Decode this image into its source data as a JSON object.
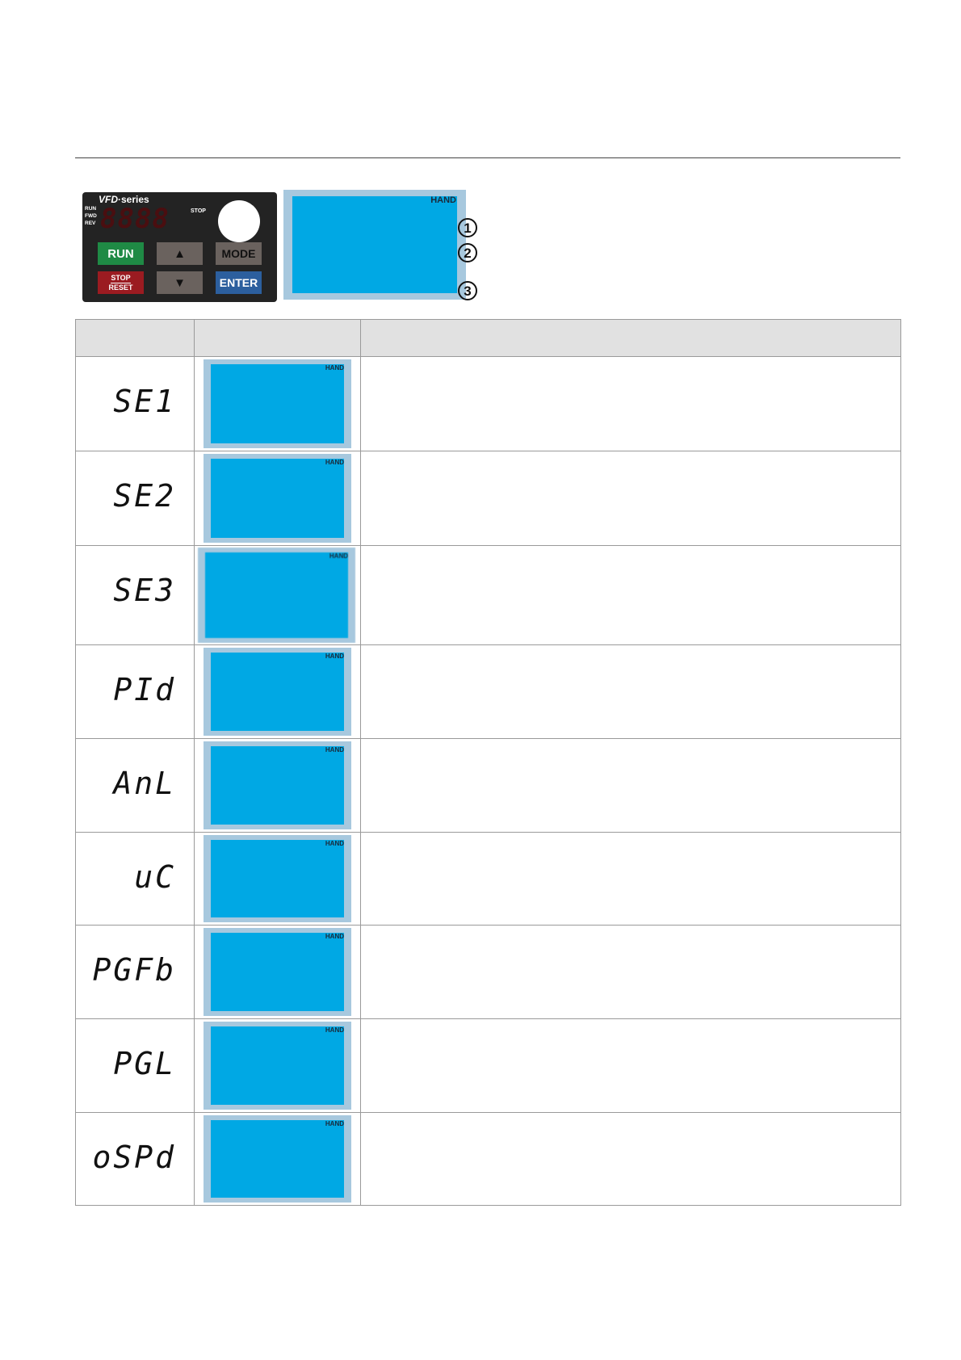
{
  "keypad": {
    "brand": "VFD",
    "brand_suffix": "·series",
    "indicators": [
      "RUN",
      "FWD",
      "REV"
    ],
    "led_display": "8888",
    "stop_label": "STOP",
    "buttons": {
      "run": "RUN",
      "up": "▲",
      "mode": "MODE",
      "stop": "STOP",
      "reset": "RESET",
      "down": "▼",
      "enter": "ENTER"
    },
    "colors": {
      "run": "#1f8a45",
      "stop": "#9b1b21",
      "enter": "#2c5f9e",
      "gray": "#6a625e"
    }
  },
  "lcd": {
    "hand_label": "HAND",
    "screen_color": "#00a8e4",
    "frame_color": "#a7c8de"
  },
  "callouts": [
    "1",
    "2",
    "3"
  ],
  "table": {
    "headers": [
      "",
      "",
      ""
    ],
    "rows": [
      {
        "code": "SE1",
        "hand": "HAND",
        "description": ""
      },
      {
        "code": "SE2",
        "hand": "HAND",
        "description": ""
      },
      {
        "code": "SE3",
        "hand": "HAND",
        "description": ""
      },
      {
        "code": "PId",
        "hand": "HAND",
        "description": ""
      },
      {
        "code": "AnL",
        "hand": "HAND",
        "description": ""
      },
      {
        "code": "uC",
        "hand": "HAND",
        "description": ""
      },
      {
        "code": "PGFb",
        "hand": "HAND",
        "description": ""
      },
      {
        "code": "PGL",
        "hand": "HAND",
        "description": ""
      },
      {
        "code": "oSPd",
        "hand": "HAND",
        "description": ""
      }
    ]
  }
}
